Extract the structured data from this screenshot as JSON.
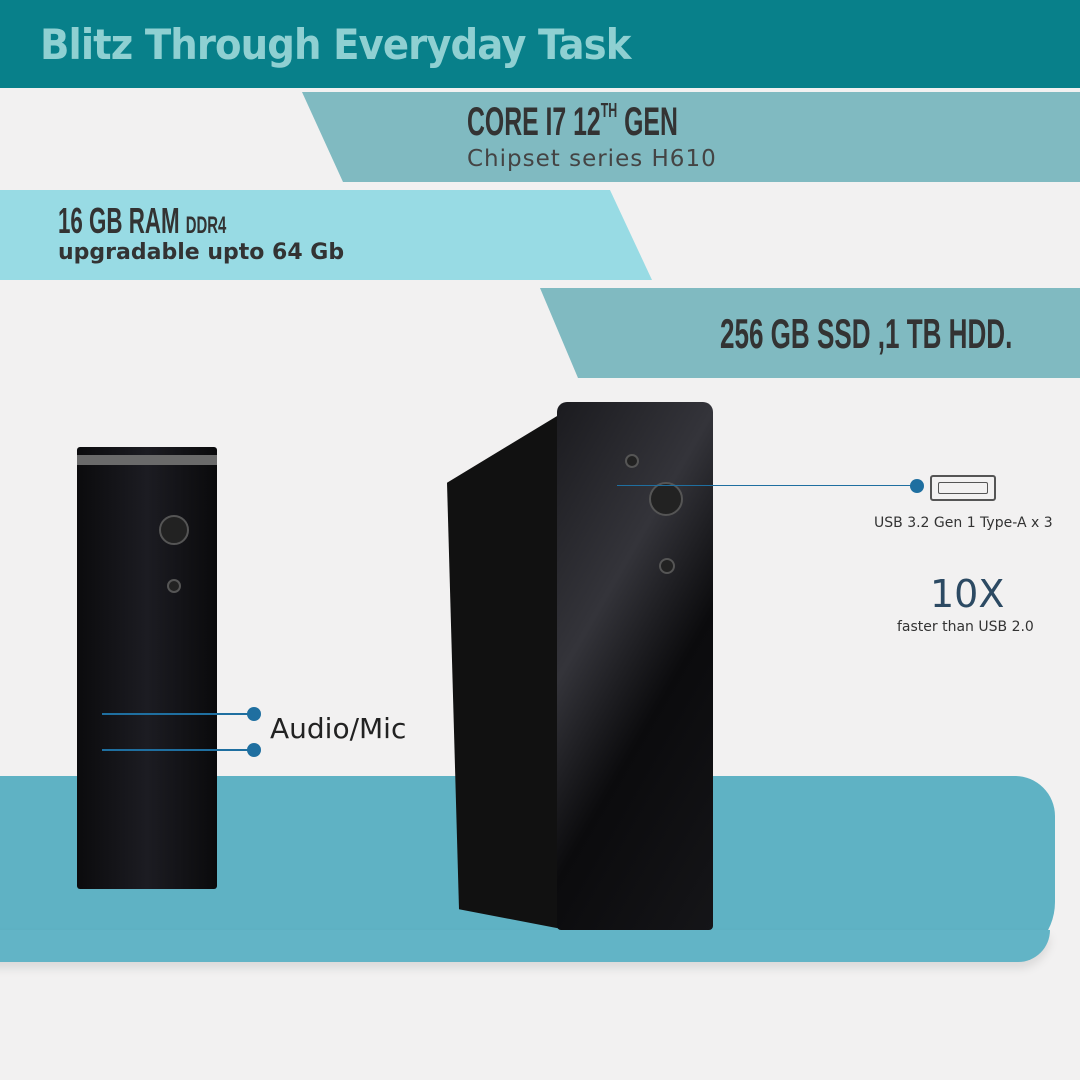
{
  "header": {
    "title": "Blitz Through Everyday Task"
  },
  "specs": {
    "cpu": {
      "title": "CORE I7 12",
      "sup": "TH",
      "title_end": " GEN",
      "subtitle": "Chipset series H610"
    },
    "ram": {
      "title": "16 GB RAM ",
      "title_small": "DDR4",
      "subtitle": "upgradable upto 64 Gb"
    },
    "storage": {
      "title": "256 GB SSD ,1 TB HDD."
    }
  },
  "callouts": {
    "audio": "Audio/Mic",
    "usb": "USB 3.2 Gen 1 Type-A x 3",
    "speed": "10X",
    "speed_note": "faster than USB 2.0"
  },
  "colors": {
    "header": "#08808a",
    "title": "#8fd0d2",
    "band_dark": "#80bac1",
    "band_light": "#98dbe4",
    "table": "#5fb2c4",
    "callout_line": "#1f6fa0"
  }
}
